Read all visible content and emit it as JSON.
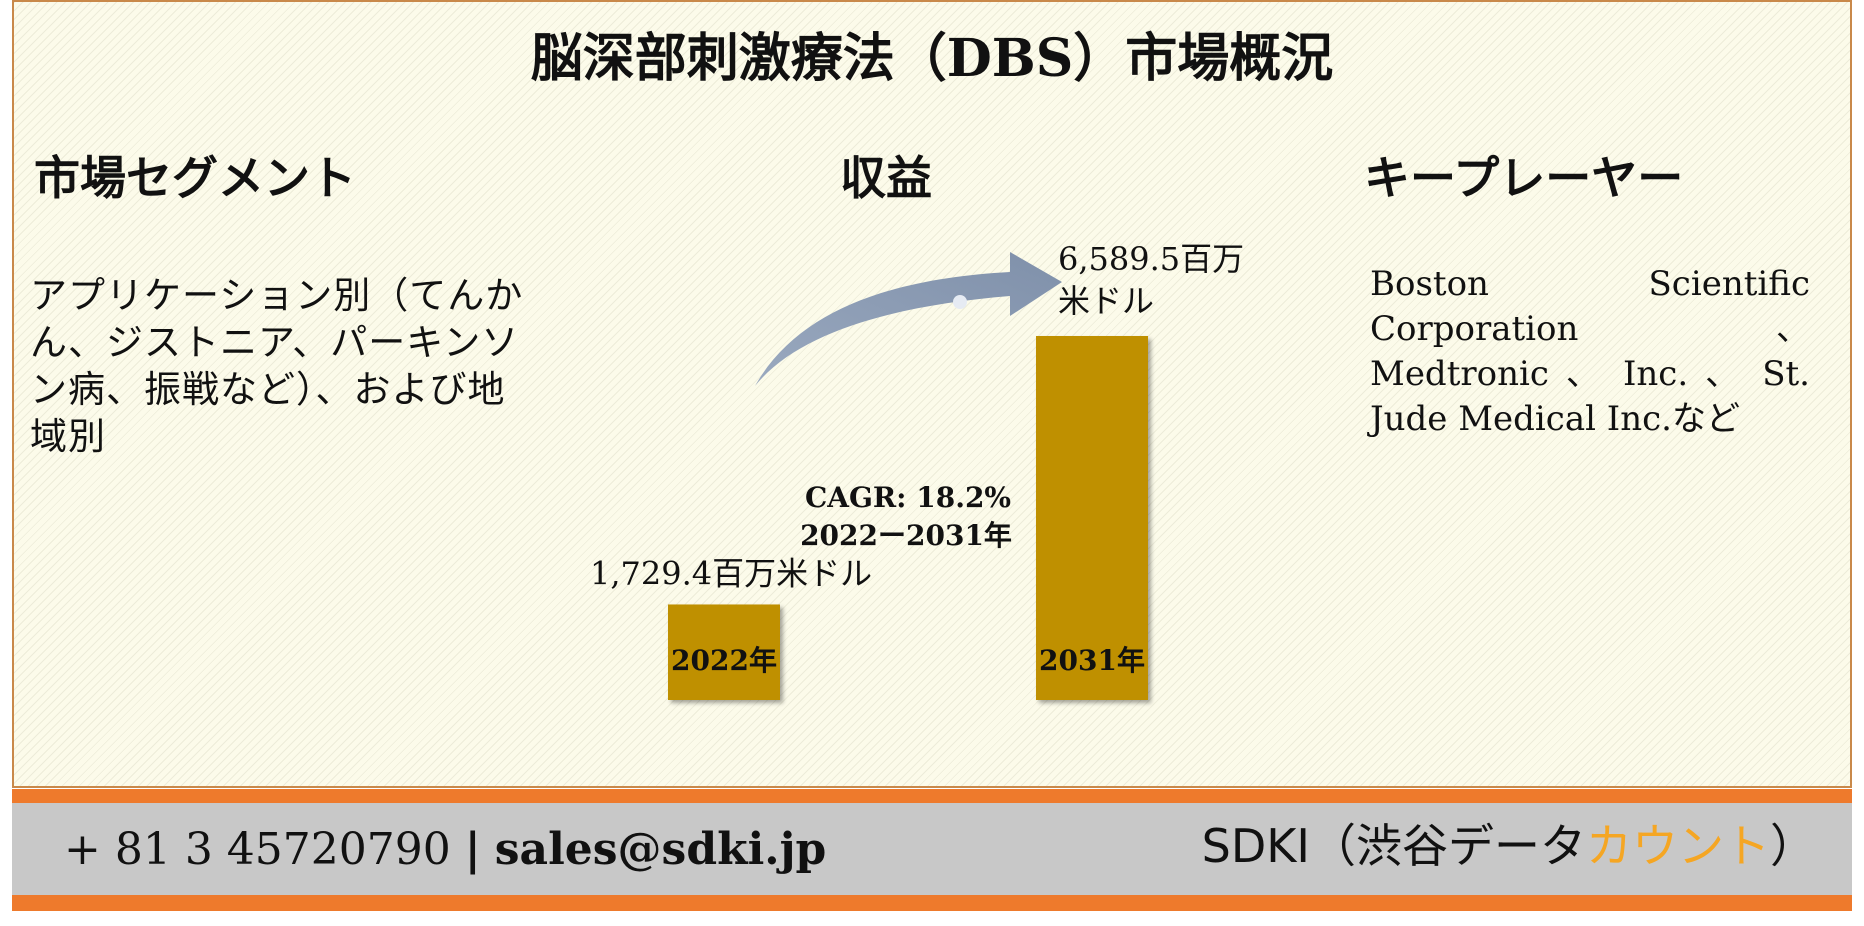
{
  "title": "脳深部刺激療法（DBS）市場概況",
  "sections": {
    "segment": {
      "heading": "市場セグメント",
      "text": "アプリケーション別（てんかん、ジストニア、パーキンソン病、振戦など）、および地域別"
    },
    "revenue": {
      "heading": "収益"
    },
    "players": {
      "heading": "キープレーヤー",
      "text": "Boston Scientific Corporation 、 Medtronic 、 Inc. 、 St. Jude Medical Inc.など"
    }
  },
  "chart_data": {
    "type": "bar",
    "categories": [
      "2022年",
      "2031年"
    ],
    "values": [
      1729.4,
      6589.5
    ],
    "value_labels": [
      "1,729.4百万米ドル",
      "6,589.5百万米ドル"
    ],
    "annotations": [
      "CAGR: 18.2%",
      "2022ー2031年"
    ],
    "ylim": [
      0,
      6589.5
    ],
    "bar_color": "#bf9000",
    "arrow_color": "#8496b0"
  },
  "footer": {
    "phone": "+ 81 3 45720790",
    "separator": "|",
    "email": "sales@sdki.jp",
    "brand_prefix": "SDKI（渋谷データ",
    "brand_highlight": "カウント",
    "brand_suffix": "）",
    "highlight_color": "#f5a623"
  }
}
